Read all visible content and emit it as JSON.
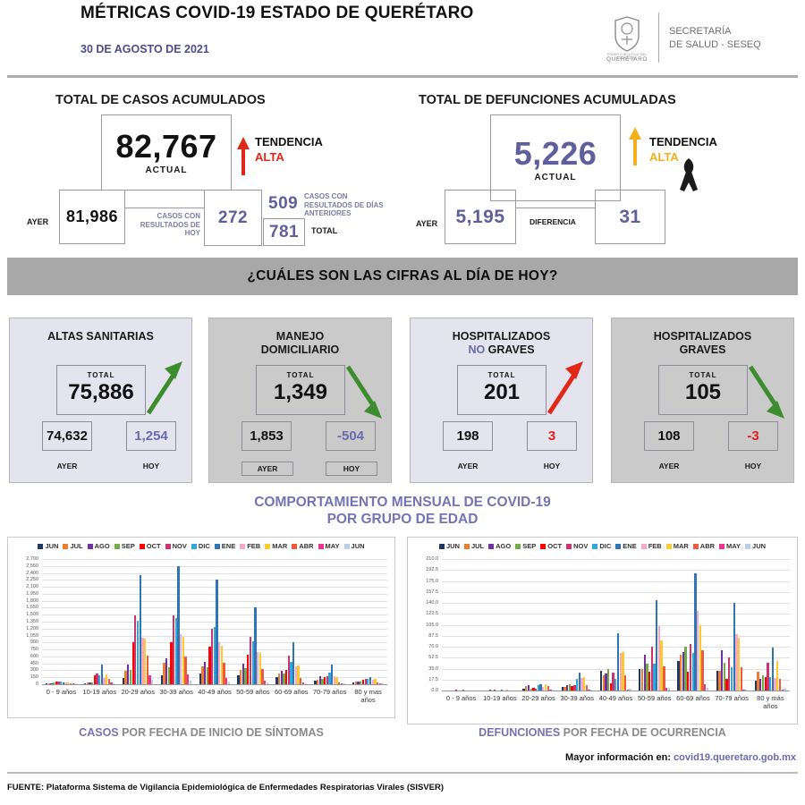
{
  "header": {
    "title": "MÉTRICAS COVID-19 ESTADO DE QUERÉTARO",
    "date": "30 DE AGOSTO DE 2021",
    "logo": {
      "org_caption": "PODER EJECUTIVO DEL ESTADO DE",
      "org_name": "QUERÉTARO",
      "secretaria_line1": "SECRETARÍA",
      "secretaria_line2": "DE SALUD - SESEQ"
    }
  },
  "casos": {
    "title": "TOTAL DE CASOS ACUMULADOS",
    "actual": "82,767",
    "actual_label": "ACTUAL",
    "tendencia_label": "TENDENCIA",
    "tendencia_value": "ALTA",
    "ayer_label": "AYER",
    "ayer": "81,986",
    "conn_label": "CASOS CON RESULTADOS DE HOY",
    "hoy": "272",
    "anteriores": "509",
    "anteriores_label": "CASOS CON RESULTADOS DE DÍAS ANTERIORES",
    "total": "781",
    "total_label": "TOTAL"
  },
  "defunciones": {
    "title": "TOTAL DE DEFUNCIONES ACUMULADAS",
    "actual": "5,226",
    "actual_label": "ACTUAL",
    "tendencia_label": "TENDENCIA",
    "tendencia_value": "ALTA",
    "ayer_label": "AYER",
    "ayer": "5,195",
    "diferencia_label": "DIFERENCIA",
    "diferencia": "31"
  },
  "banner": "¿CUÁLES SON LAS CIFRAS AL DÍA DE HOY?",
  "cards": [
    {
      "line1": "ALTAS SANITARIAS",
      "line2": "",
      "total_label": "TOTAL",
      "total": "75,886",
      "ayer": "74,632",
      "hoy": "1,254",
      "ayer_label": "AYER",
      "hoy_label": "HOY",
      "hoy_color": "#6a6aae",
      "trend": "up-green"
    },
    {
      "line1": "MANEJO",
      "line2": "DOMICILIARIO",
      "total_label": "TOTAL",
      "total": "1,349",
      "ayer": "1,853",
      "hoy": "-504",
      "ayer_label": "AYER",
      "hoy_label": "HOY",
      "hoy_color": "#6a6aae",
      "trend": "down-green"
    },
    {
      "line1": "HOSPITALIZADOS",
      "line2_accent": "NO",
      "line2_rest": " GRAVES",
      "total_label": "TOTAL",
      "total": "201",
      "ayer": "198",
      "hoy": "3",
      "ayer_label": "AYER",
      "hoy_label": "HOY",
      "hoy_color": "#e01e1e",
      "trend": "up-red"
    },
    {
      "line1": "HOSPITALIZADOS",
      "line2": "GRAVES",
      "total_label": "TOTAL",
      "total": "105",
      "ayer": "108",
      "hoy": "-3",
      "ayer_label": "AYER",
      "hoy_label": "HOY",
      "hoy_color": "#e01e1e",
      "trend": "down-green"
    }
  ],
  "section_title_line1": "COMPORTAMIENTO MENSUAL DE COVID-19",
  "section_title_line2": "POR GRUPO DE EDAD",
  "colors": {
    "accent_purple": "#5f5f9e",
    "red": "#e02818",
    "yellow": "#f2b01e",
    "green": "#3d8c2f",
    "banner_gray": "#a8a8a8"
  },
  "chart_data": [
    {
      "type": "bar",
      "caption_accent": "CASOS",
      "caption_rest": " POR FECHA DE INICIO DE SÍNTOMAS",
      "categories": [
        "0 - 9 años",
        "10-19 años",
        "20-29 años",
        "30-39 años",
        "40-49 años",
        "50-59 años",
        "60-69 años",
        "70-79 años",
        "80 y mas años"
      ],
      "ymax": 2700,
      "ytick_step": 150,
      "ytick_format": "comma",
      "ylim": [
        0,
        2700
      ],
      "grid": true,
      "legend_position": "top",
      "series": [
        {
          "name": "JUN",
          "color": "#1f3864",
          "values": [
            10,
            15,
            140,
            200,
            230,
            200,
            150,
            80,
            30
          ]
        },
        {
          "name": "JUL",
          "color": "#ed7d31",
          "values": [
            15,
            30,
            290,
            460,
            390,
            300,
            230,
            100,
            50
          ]
        },
        {
          "name": "AGO",
          "color": "#7030a0",
          "values": [
            25,
            40,
            420,
            560,
            490,
            450,
            290,
            170,
            60
          ]
        },
        {
          "name": "SEP",
          "color": "#70ad47",
          "values": [
            30,
            40,
            300,
            370,
            370,
            340,
            240,
            120,
            60
          ]
        },
        {
          "name": "OCT",
          "color": "#ff0000",
          "values": [
            60,
            185,
            900,
            910,
            810,
            640,
            310,
            150,
            90
          ]
        },
        {
          "name": "NOV",
          "color": "#c9366f",
          "values": [
            55,
            225,
            1490,
            1480,
            1200,
            1020,
            620,
            170,
            110
          ]
        },
        {
          "name": "DIC",
          "color": "#33a6dc",
          "values": [
            50,
            190,
            1360,
            1420,
            1230,
            920,
            480,
            250,
            120
          ]
        },
        {
          "name": "ENE",
          "color": "#2e75b6",
          "values": [
            45,
            420,
            2350,
            2550,
            2250,
            1650,
            910,
            420,
            150
          ]
        },
        {
          "name": "FEB",
          "color": "#f5a9c5",
          "values": [
            30,
            130,
            1000,
            1080,
            910,
            700,
            390,
            170,
            100
          ]
        },
        {
          "name": "MAR",
          "color": "#ffc82e",
          "values": [
            30,
            220,
            975,
            1020,
            830,
            680,
            400,
            160,
            110
          ]
        },
        {
          "name": "ABR",
          "color": "#ee5b3a",
          "values": [
            20,
            110,
            610,
            590,
            460,
            320,
            130,
            40,
            40
          ]
        },
        {
          "name": "MAY",
          "color": "#e8368f",
          "values": [
            15,
            40,
            190,
            215,
            140,
            70,
            40,
            15,
            15
          ]
        },
        {
          "name": "JUN",
          "color": "#b7cfe9",
          "values": [
            10,
            20,
            90,
            80,
            60,
            40,
            20,
            10,
            8
          ]
        }
      ]
    },
    {
      "type": "bar",
      "caption_accent": "DEFUNCIONES",
      "caption_rest": " POR FECHA DE OCURRENCIA",
      "categories": [
        "0 - 9 años",
        "10-19 años",
        "20-29 años",
        "30-39 años",
        "40-49 años",
        "50-59 años",
        "60-69 años",
        "70-79 años",
        "80 y más años"
      ],
      "ymax": 210,
      "ytick_step": 17.5,
      "ytick_format": "decimal1",
      "ylim": [
        0,
        210
      ],
      "grid": true,
      "legend_position": "top",
      "series": [
        {
          "name": "JUN",
          "color": "#1f3864",
          "values": [
            0,
            0,
            3,
            6,
            32,
            35,
            47,
            32,
            16
          ]
        },
        {
          "name": "JUL",
          "color": "#ed7d31",
          "values": [
            0,
            0,
            7,
            6,
            25,
            35,
            57,
            31,
            30
          ]
        },
        {
          "name": "AGO",
          "color": "#7030a0",
          "values": [
            0,
            1,
            8,
            8,
            27,
            57,
            62,
            64,
            18
          ]
        },
        {
          "name": "SEP",
          "color": "#70ad47",
          "values": [
            0,
            0,
            3,
            10,
            35,
            43,
            70,
            45,
            24
          ]
        },
        {
          "name": "OCT",
          "color": "#ff0000",
          "values": [
            1,
            2,
            4,
            7,
            12,
            30,
            30,
            19,
            21
          ]
        },
        {
          "name": "NOV",
          "color": "#c9366f",
          "values": [
            0,
            0,
            3,
            8,
            28,
            70,
            75,
            53,
            44
          ]
        },
        {
          "name": "DIC",
          "color": "#33a6dc",
          "values": [
            0,
            0,
            9,
            18,
            18,
            43,
            60,
            37,
            21
          ]
        },
        {
          "name": "ENE",
          "color": "#2e75b6",
          "values": [
            1,
            1,
            10,
            28,
            91,
            145,
            187,
            140,
            69
          ]
        },
        {
          "name": "FEB",
          "color": "#f5a9c5",
          "values": [
            0,
            0,
            6,
            20,
            60,
            103,
            127,
            90,
            20
          ]
        },
        {
          "name": "MAR",
          "color": "#ffc82e",
          "values": [
            0,
            1,
            10,
            22,
            62,
            80,
            105,
            84,
            47
          ]
        },
        {
          "name": "ABR",
          "color": "#ee5b3a",
          "values": [
            0,
            0,
            7,
            9,
            24,
            39,
            65,
            37,
            19
          ]
        },
        {
          "name": "MAY",
          "color": "#e8368f",
          "values": [
            0,
            0,
            1,
            2,
            2,
            5,
            10,
            2,
            2
          ]
        },
        {
          "name": "JUN",
          "color": "#b7cfe9",
          "values": [
            0,
            0,
            0,
            1,
            3,
            5,
            4,
            1,
            3
          ]
        }
      ]
    }
  ],
  "footer": {
    "info_label": "Mayor información en:",
    "info_link": "covid19.queretaro.gob.mx",
    "fuente": "FUENTE: Plataforma Sistema  de Vigilancia Epidemiológica de Enfermedades Respiratorias Virales (SISVER)"
  }
}
